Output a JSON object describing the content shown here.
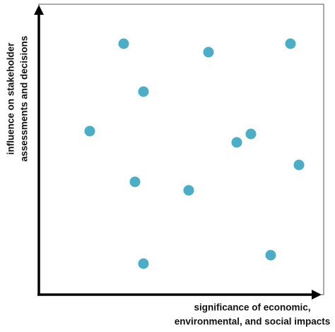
{
  "chart_data": {
    "type": "scatter",
    "xlabel": [
      "significance of economic,",
      "environmental, and social impacts"
    ],
    "ylabel": [
      "influence on stakeholder",
      "assessments and decisions"
    ],
    "xlim": [
      0,
      100
    ],
    "ylim": [
      0,
      100
    ],
    "color": "#4badc6",
    "x": [
      30,
      60,
      89,
      37,
      18,
      75,
      70,
      92,
      34,
      53,
      82,
      37
    ],
    "values": [
      89,
      86,
      89,
      72,
      58,
      57,
      54,
      46,
      40,
      37,
      14,
      11
    ]
  }
}
